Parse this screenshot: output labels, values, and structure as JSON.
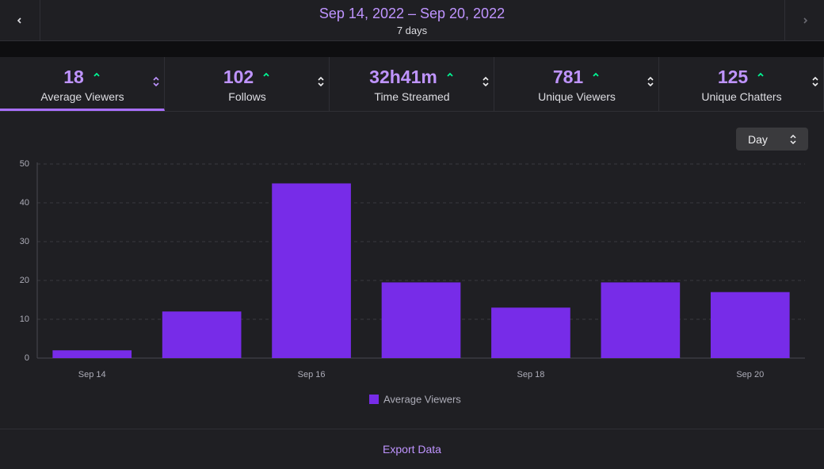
{
  "header": {
    "title": "Sep 14, 2022 – Sep 20, 2022",
    "subtitle": "7 days"
  },
  "stats": [
    {
      "value": "18",
      "label": "Average Viewers"
    },
    {
      "value": "102",
      "label": "Follows"
    },
    {
      "value": "32h41m",
      "label": "Time Streamed"
    },
    {
      "value": "781",
      "label": "Unique Viewers"
    },
    {
      "value": "125",
      "label": "Unique Chatters"
    }
  ],
  "period_select": "Day",
  "chart_data": {
    "type": "bar",
    "categories": [
      "Sep 14",
      null,
      "Sep 16",
      null,
      "Sep 18",
      null,
      "Sep 20"
    ],
    "series": [
      {
        "name": "Average Viewers",
        "color": "#772ce8",
        "values": [
          2,
          12,
          45,
          19.5,
          13,
          19.5,
          17
        ]
      }
    ],
    "ylim": [
      0,
      50
    ],
    "yticks": [
      0,
      10,
      20,
      30,
      40,
      50
    ],
    "grid": true
  },
  "footer": {
    "export": "Export Data"
  }
}
